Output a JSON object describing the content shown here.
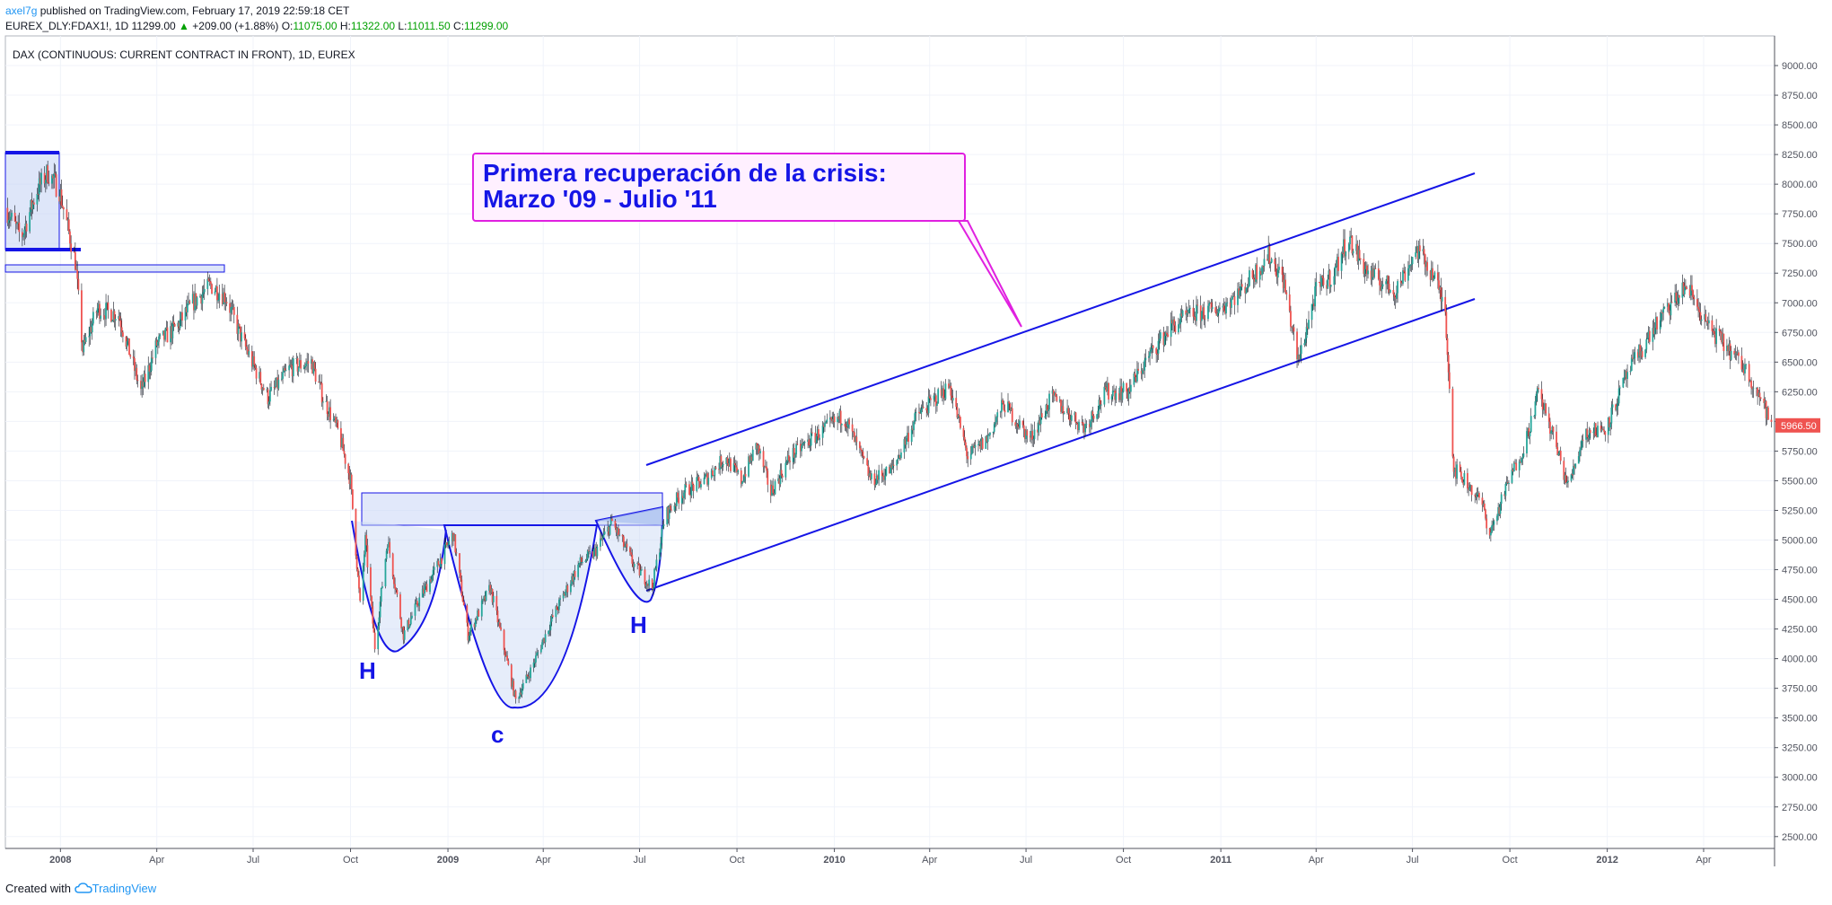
{
  "header": {
    "author": "axel7g",
    "published": "published on TradingView.com, February 17, 2019 22:59:18 CET",
    "symbol": "EUREX_DLY:FDAX1!, 1D",
    "last": "11299.00",
    "change_arrow": "▲",
    "change": "+209.00 (+1.88%)",
    "o_label": "O:",
    "o": "11075.00",
    "h_label": "H:",
    "h": "11322.00",
    "l_label": "L:",
    "l": "11011.50",
    "c_label": "C:",
    "c": "11299.00"
  },
  "chart_title": "DAX (CONTINUOUS: CURRENT CONTRACT IN FRONT), 1D, EUREX",
  "annotation": {
    "line1": "Primera recuperación de la crisis:",
    "line2": "Marzo '09 - Julio '11"
  },
  "pattern_labels": {
    "left_shoulder": "H",
    "head": "c",
    "right_shoulder": "H"
  },
  "price_badge": "5966.50",
  "footer": {
    "created": "Created with",
    "brand": "TradingView"
  },
  "colors": {
    "up": "#26a69a",
    "down": "#ef5350",
    "drawing": "#1515e6",
    "callout": "#e020e0",
    "badge": "#ef5350"
  },
  "chart_data": {
    "type": "line",
    "title": "DAX (CONTINUOUS: CURRENT CONTRACT IN FRONT), 1D, EUREX",
    "ylim": [
      2400,
      9250
    ],
    "y_ticks": [
      2500,
      2750,
      3000,
      3250,
      3500,
      3750,
      4000,
      4250,
      4500,
      4750,
      5000,
      5250,
      5500,
      5750,
      6000,
      6250,
      6500,
      6750,
      7000,
      7250,
      7500,
      7750,
      8000,
      8250,
      8500,
      8750,
      9000
    ],
    "y_tick_labels": [
      "2500.00",
      "2750.00",
      "3000.00",
      "3250.00",
      "3500.00",
      "3750.00",
      "4000.00",
      "4250.00",
      "4500.00",
      "4750.00",
      "5000.00",
      "5250.00",
      "5500.00",
      "5750.00",
      "6000.00",
      "6250.00",
      "6500.00",
      "6750.00",
      "7000.00",
      "7250.00",
      "7500.00",
      "7750.00",
      "8000.00",
      "8250.00",
      "8500.00",
      "8750.00",
      "9000.00"
    ],
    "x_ticks": [
      {
        "date": "2008-01-01",
        "label": "2008",
        "bold": true
      },
      {
        "date": "2008-04-01",
        "label": "Apr"
      },
      {
        "date": "2008-07-01",
        "label": "Jul"
      },
      {
        "date": "2008-10-01",
        "label": "Oct"
      },
      {
        "date": "2009-01-01",
        "label": "2009",
        "bold": true
      },
      {
        "date": "2009-04-01",
        "label": "Apr"
      },
      {
        "date": "2009-07-01",
        "label": "Jul"
      },
      {
        "date": "2009-10-01",
        "label": "Oct"
      },
      {
        "date": "2010-01-01",
        "label": "2010",
        "bold": true
      },
      {
        "date": "2010-04-01",
        "label": "Apr"
      },
      {
        "date": "2010-07-01",
        "label": "Jul"
      },
      {
        "date": "2010-10-01",
        "label": "Oct"
      },
      {
        "date": "2011-01-01",
        "label": "2011",
        "bold": true
      },
      {
        "date": "2011-04-01",
        "label": "Apr"
      },
      {
        "date": "2011-07-01",
        "label": "Jul"
      },
      {
        "date": "2011-10-01",
        "label": "Oct"
      },
      {
        "date": "2012-01-01",
        "label": "2012",
        "bold": true
      },
      {
        "date": "2012-04-01",
        "label": "Apr"
      }
    ],
    "x_range": [
      "2007-11-10",
      "2012-06-07"
    ],
    "series": [
      {
        "points": [
          [
            "2007-11-10",
            7800
          ],
          [
            "2007-11-25",
            7550
          ],
          [
            "2007-12-10",
            7950
          ],
          [
            "2007-12-20",
            8100
          ],
          [
            "2007-12-31",
            7950
          ],
          [
            "2008-01-15",
            7350
          ],
          [
            "2008-01-22",
            6600
          ],
          [
            "2008-02-05",
            6950
          ],
          [
            "2008-02-25",
            6900
          ],
          [
            "2008-03-17",
            6250
          ],
          [
            "2008-04-01",
            6650
          ],
          [
            "2008-04-20",
            6800
          ],
          [
            "2008-05-05",
            7000
          ],
          [
            "2008-05-22",
            7150
          ],
          [
            "2008-06-05",
            7050
          ],
          [
            "2008-06-20",
            6700
          ],
          [
            "2008-07-05",
            6400
          ],
          [
            "2008-07-15",
            6200
          ],
          [
            "2008-08-05",
            6450
          ],
          [
            "2008-08-25",
            6500
          ],
          [
            "2008-09-05",
            6200
          ],
          [
            "2008-09-20",
            5900
          ],
          [
            "2008-10-01",
            5500
          ],
          [
            "2008-10-10",
            4450
          ],
          [
            "2008-10-15",
            5000
          ],
          [
            "2008-10-24",
            4100
          ],
          [
            "2008-11-05",
            5000
          ],
          [
            "2008-11-20",
            4200
          ],
          [
            "2008-12-05",
            4500
          ],
          [
            "2008-12-20",
            4750
          ],
          [
            "2009-01-06",
            5050
          ],
          [
            "2009-01-20",
            4200
          ],
          [
            "2009-02-10",
            4600
          ],
          [
            "2009-03-06",
            3650
          ],
          [
            "2009-03-20",
            3900
          ],
          [
            "2009-04-10",
            4350
          ],
          [
            "2009-05-05",
            4800
          ],
          [
            "2009-05-20",
            4900
          ],
          [
            "2009-06-05",
            5150
          ],
          [
            "2009-06-25",
            4800
          ],
          [
            "2009-07-13",
            4600
          ],
          [
            "2009-07-25",
            5200
          ],
          [
            "2009-08-10",
            5400
          ],
          [
            "2009-08-31",
            5500
          ],
          [
            "2009-09-20",
            5700
          ],
          [
            "2009-10-05",
            5500
          ],
          [
            "2009-10-20",
            5800
          ],
          [
            "2009-11-02",
            5400
          ],
          [
            "2009-11-20",
            5700
          ],
          [
            "2009-12-10",
            5850
          ],
          [
            "2010-01-10",
            6050
          ],
          [
            "2010-02-05",
            5500
          ],
          [
            "2010-02-25",
            5600
          ],
          [
            "2010-03-20",
            6050
          ],
          [
            "2010-04-20",
            6300
          ],
          [
            "2010-05-07",
            5700
          ],
          [
            "2010-05-25",
            5850
          ],
          [
            "2010-06-10",
            6150
          ],
          [
            "2010-07-05",
            5850
          ],
          [
            "2010-07-25",
            6200
          ],
          [
            "2010-08-25",
            5950
          ],
          [
            "2010-09-15",
            6250
          ],
          [
            "2010-10-05",
            6250
          ],
          [
            "2010-10-25",
            6550
          ],
          [
            "2010-11-15",
            6800
          ],
          [
            "2010-12-05",
            6900
          ],
          [
            "2010-12-31",
            6950
          ],
          [
            "2011-01-20",
            7100
          ],
          [
            "2011-02-15",
            7400
          ],
          [
            "2011-03-01",
            7200
          ],
          [
            "2011-03-15",
            6500
          ],
          [
            "2011-04-01",
            7100
          ],
          [
            "2011-04-18",
            7250
          ],
          [
            "2011-05-01",
            7550
          ],
          [
            "2011-05-20",
            7250
          ],
          [
            "2011-06-15",
            7100
          ],
          [
            "2011-07-05",
            7450
          ],
          [
            "2011-07-20",
            7250
          ],
          [
            "2011-08-01",
            6950
          ],
          [
            "2011-08-09",
            5600
          ],
          [
            "2011-08-20",
            5500
          ],
          [
            "2011-09-05",
            5300
          ],
          [
            "2011-09-12",
            5050
          ],
          [
            "2011-09-30",
            5500
          ],
          [
            "2011-10-15",
            5800
          ],
          [
            "2011-10-28",
            6250
          ],
          [
            "2011-11-10",
            5900
          ],
          [
            "2011-11-25",
            5450
          ],
          [
            "2011-12-10",
            5900
          ],
          [
            "2011-12-31",
            5950
          ],
          [
            "2012-01-20",
            6400
          ],
          [
            "2012-02-15",
            6800
          ],
          [
            "2012-03-16",
            7150
          ],
          [
            "2012-04-05",
            6800
          ],
          [
            "2012-04-25",
            6600
          ],
          [
            "2012-05-10",
            6450
          ],
          [
            "2012-05-25",
            6200
          ],
          [
            "2012-06-04",
            5966.5
          ]
        ]
      }
    ]
  }
}
